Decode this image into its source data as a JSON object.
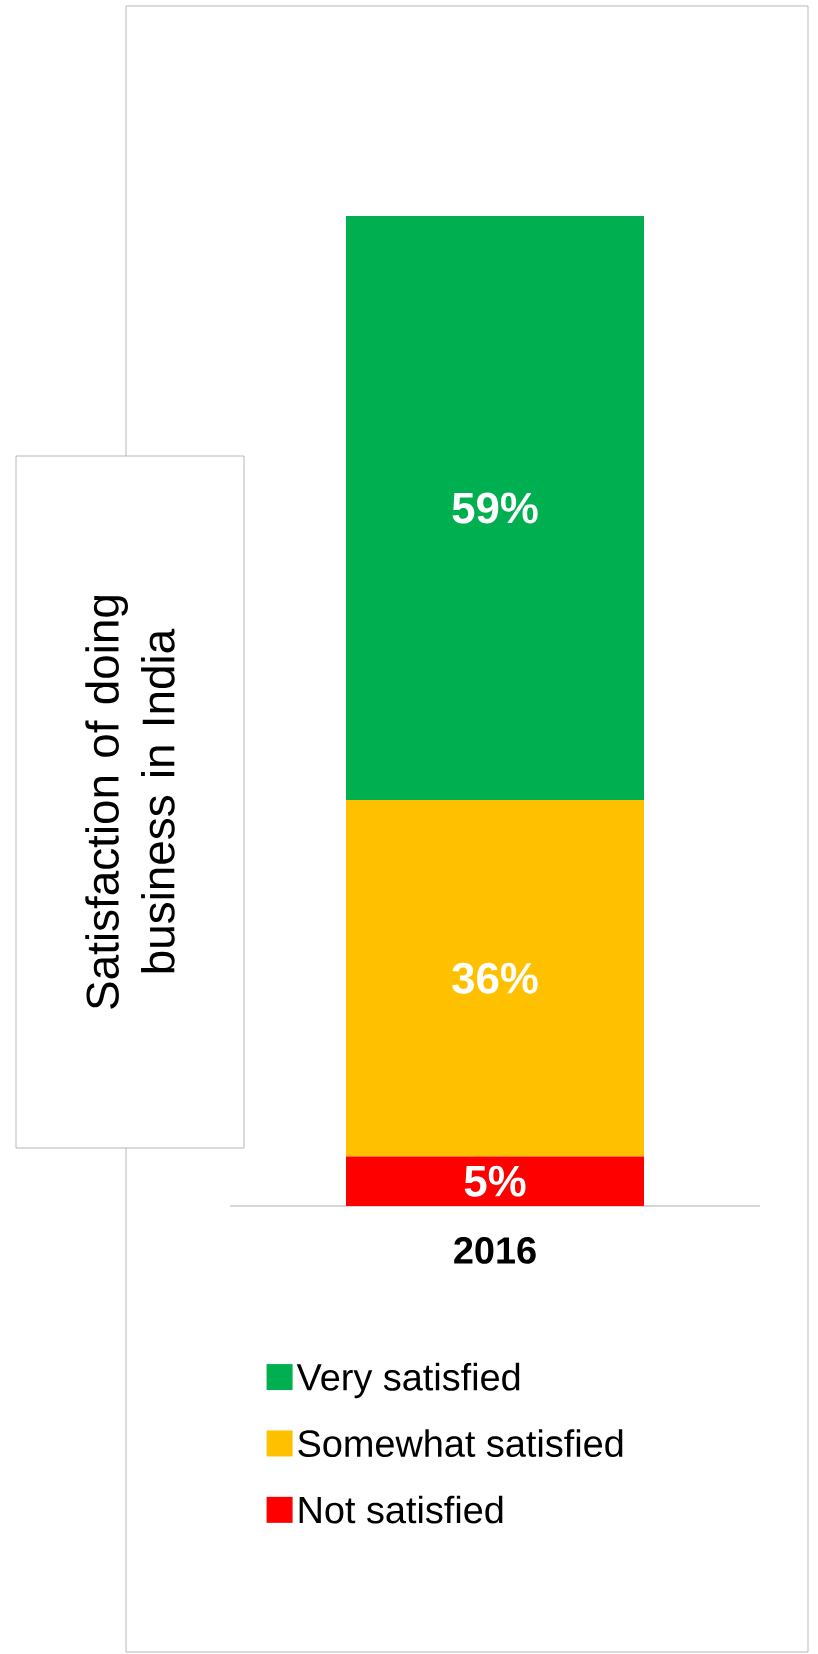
{
  "chart_data": {
    "type": "bar",
    "stacked": true,
    "ylabel": "Satisfaction of doing business in India",
    "categories": [
      "2016"
    ],
    "legend": "bottom",
    "series": [
      {
        "name": "Not satisfied",
        "color": "#ff0000",
        "values": [
          5
        ],
        "value_labels": [
          "5%"
        ]
      },
      {
        "name": "Somewhat satisfied",
        "color": "#ffc000",
        "values": [
          36
        ],
        "value_labels": [
          "36%"
        ]
      },
      {
        "name": "Very satisfied",
        "color": "#00b050",
        "values": [
          59
        ],
        "value_labels": [
          "59%"
        ]
      }
    ]
  }
}
